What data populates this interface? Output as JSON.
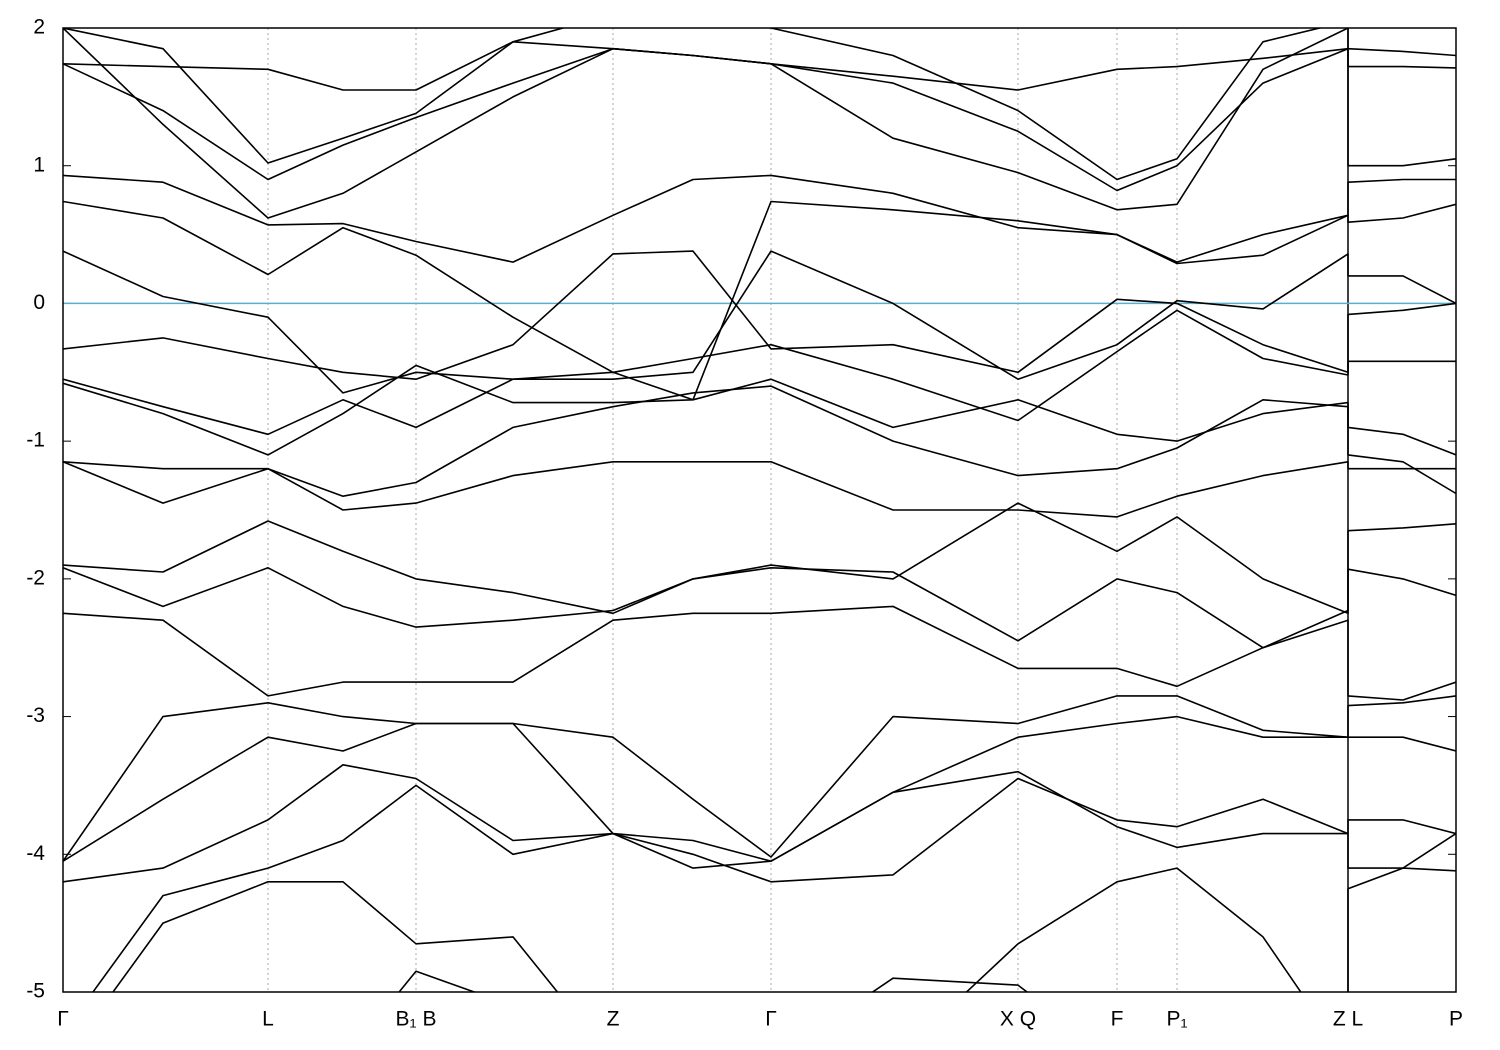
{
  "chart_data": {
    "type": "line",
    "x": [
      0,
      1.0,
      2.05,
      2.8,
      3.53,
      4.5,
      5.5,
      6.3,
      7.08,
      8.3,
      9.55,
      10.54,
      11.14,
      12.0,
      12.85,
      12.85,
      13.4,
      13.93
    ],
    "xlim": [
      0,
      13.93
    ],
    "xticks": [
      {
        "value": 0,
        "label": "Γ"
      },
      {
        "value": 2.05,
        "label": "L"
      },
      {
        "value": 3.53,
        "label": "B₁ B"
      },
      {
        "value": 5.5,
        "label": "Z"
      },
      {
        "value": 7.08,
        "label": "Γ"
      },
      {
        "value": 9.55,
        "label": "X Q"
      },
      {
        "value": 10.54,
        "label": "F"
      },
      {
        "value": 11.14,
        "label": "P₁"
      },
      {
        "value": 12.85,
        "label": "Z L"
      },
      {
        "value": 13.93,
        "label": "P"
      }
    ],
    "breaks": [
      12.85
    ],
    "ylim": [
      -5,
      2
    ],
    "yticks": [
      -5,
      -4,
      -3,
      -2,
      -1,
      0,
      1,
      2
    ],
    "color": "#000000",
    "zero_line": {
      "value": 0,
      "color": "#5aaed0"
    },
    "series": [
      {
        "values": [
          1.74,
          1.72,
          1.7,
          1.55,
          1.55,
          1.9,
          1.85,
          1.8,
          1.74,
          1.65,
          1.55,
          1.7,
          1.72,
          1.78,
          1.85,
          1.72,
          1.72,
          1.71
        ]
      },
      {
        "values": [
          1.74,
          1.4,
          0.9,
          1.15,
          1.35,
          1.6,
          1.85,
          1.8,
          1.74,
          1.6,
          1.25,
          0.82,
          1.0,
          1.6,
          1.85,
          1.85,
          1.83,
          1.8
        ]
      },
      {
        "values": [
          2.0,
          1.3,
          0.62,
          0.8,
          1.1,
          1.5,
          1.85,
          1.8,
          1.74,
          1.2,
          0.95,
          0.68,
          0.72,
          1.7,
          2.0,
          1.0,
          1.0,
          1.05
        ]
      },
      {
        "values": [
          2.0,
          1.85,
          1.02,
          1.2,
          1.38,
          1.9,
          2.1,
          2.1,
          2.0,
          1.8,
          1.4,
          0.9,
          1.05,
          1.9,
          2.05,
          2.05,
          2.05,
          2.05
        ]
      },
      {
        "values": [
          0.93,
          0.88,
          0.57,
          0.58,
          0.45,
          0.3,
          0.64,
          0.9,
          0.93,
          0.8,
          0.55,
          0.5,
          0.29,
          0.35,
          0.64,
          0.88,
          0.9,
          0.9
        ]
      },
      {
        "values": [
          0.74,
          0.62,
          0.21,
          0.55,
          0.35,
          -0.1,
          -0.5,
          -0.7,
          0.74,
          0.68,
          0.6,
          0.5,
          0.3,
          0.5,
          0.64,
          0.59,
          0.62,
          0.72
        ]
      },
      {
        "values": [
          0.38,
          0.05,
          -0.1,
          -0.65,
          -0.5,
          -0.55,
          -0.55,
          -0.5,
          0.38,
          0.0,
          -0.55,
          -0.3,
          0.02,
          -0.04,
          0.36,
          0.2,
          0.2,
          0.0
        ]
      },
      {
        "values": [
          -0.33,
          -0.25,
          -0.4,
          -0.5,
          -0.55,
          -0.3,
          0.36,
          0.38,
          -0.33,
          -0.3,
          -0.5,
          0.03,
          0.0,
          -0.3,
          -0.5,
          -0.08,
          -0.05,
          0.0
        ]
      },
      {
        "values": [
          -0.55,
          -0.75,
          -0.95,
          -0.7,
          -0.9,
          -0.55,
          -0.5,
          -0.4,
          -0.3,
          -0.55,
          -0.85,
          -0.35,
          -0.05,
          -0.4,
          -0.52,
          -0.42,
          -0.42,
          -0.42
        ]
      },
      {
        "values": [
          -0.58,
          -0.8,
          -1.1,
          -0.8,
          -0.45,
          -0.72,
          -0.72,
          -0.7,
          -0.55,
          -0.9,
          -0.7,
          -0.95,
          -1.0,
          -0.8,
          -0.72,
          -0.9,
          -0.95,
          -1.1
        ]
      },
      {
        "values": [
          -1.15,
          -1.2,
          -1.2,
          -1.4,
          -1.3,
          -0.9,
          -0.75,
          -0.65,
          -0.6,
          -1.0,
          -1.25,
          -1.2,
          -1.05,
          -0.7,
          -0.75,
          -1.1,
          -1.15,
          -1.38
        ]
      },
      {
        "values": [
          -1.15,
          -1.45,
          -1.2,
          -1.5,
          -1.45,
          -1.25,
          -1.15,
          -1.15,
          -1.15,
          -1.5,
          -1.5,
          -1.55,
          -1.4,
          -1.25,
          -1.15,
          -1.2,
          -1.2,
          -1.2
        ]
      },
      {
        "values": [
          -1.9,
          -1.95,
          -1.58,
          -1.8,
          -2.0,
          -2.1,
          -2.25,
          -2.0,
          -1.9,
          -2.0,
          -1.45,
          -1.8,
          -1.55,
          -2.0,
          -2.25,
          -1.65,
          -1.63,
          -1.6
        ]
      },
      {
        "values": [
          -1.92,
          -2.2,
          -1.92,
          -2.2,
          -2.35,
          -2.3,
          -2.23,
          -2.0,
          -1.92,
          -1.95,
          -2.45,
          -2.0,
          -2.1,
          -2.5,
          -2.23,
          -1.93,
          -2.0,
          -2.12
        ]
      },
      {
        "values": [
          -2.25,
          -2.3,
          -2.85,
          -2.75,
          -2.75,
          -2.75,
          -2.3,
          -2.25,
          -2.25,
          -2.2,
          -2.65,
          -2.65,
          -2.78,
          -2.5,
          -2.3,
          -2.85,
          -2.88,
          -2.75
        ]
      },
      {
        "values": [
          -4.05,
          -3.0,
          -2.9,
          -3.0,
          -3.05,
          -3.05,
          -3.15,
          -3.6,
          -4.02,
          -3.0,
          -3.05,
          -2.85,
          -2.85,
          -3.1,
          -3.15,
          -2.92,
          -2.9,
          -2.85
        ]
      },
      {
        "values": [
          -4.05,
          -3.6,
          -3.15,
          -3.25,
          -3.05,
          -3.05,
          -3.85,
          -3.9,
          -4.05,
          -3.55,
          -3.15,
          -3.05,
          -3.0,
          -3.15,
          -3.15,
          -3.15,
          -3.15,
          -3.25
        ]
      },
      {
        "values": [
          -4.2,
          -4.1,
          -3.75,
          -3.35,
          -3.45,
          -3.9,
          -3.85,
          -4.0,
          -4.2,
          -4.15,
          -3.45,
          -3.75,
          -3.8,
          -3.6,
          -3.85,
          -3.75,
          -3.75,
          -3.85
        ]
      },
      {
        "values": [
          -5.3,
          -4.3,
          -4.1,
          -3.9,
          -3.5,
          -4.0,
          -3.85,
          -4.1,
          -4.05,
          -3.55,
          -3.4,
          -3.8,
          -3.95,
          -3.85,
          -3.85,
          -4.1,
          -4.1,
          -3.85
        ]
      },
      {
        "values": [
          -5.5,
          -4.5,
          -4.2,
          -4.2,
          -4.65,
          -4.6,
          -5.5,
          -5.5,
          -5.5,
          -5.5,
          -4.65,
          -4.2,
          -4.1,
          -4.6,
          -5.5,
          -4.25,
          -4.1,
          -4.12
        ]
      },
      {
        "values": [
          -5.5,
          -5.5,
          -5.5,
          -5.5,
          -4.85,
          -5.1,
          -5.5,
          -5.5,
          -5.5,
          -4.9,
          -4.95,
          -5.5,
          -5.5,
          -5.5,
          -5.5,
          null,
          null,
          null
        ]
      }
    ]
  }
}
